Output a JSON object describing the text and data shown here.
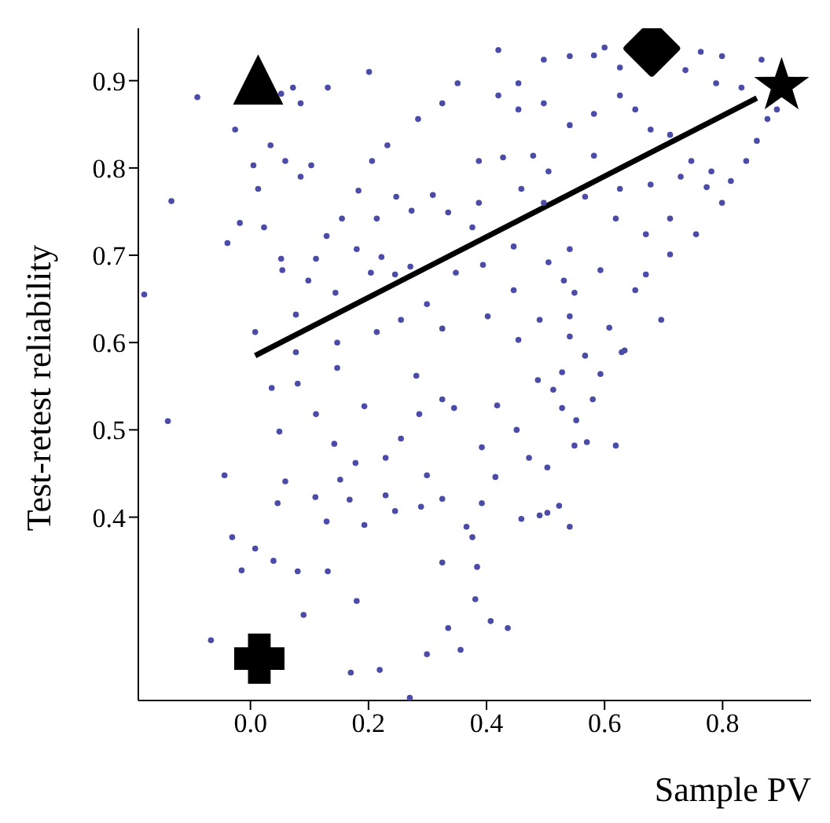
{
  "chart_data": {
    "type": "scatter",
    "xlabel": "Sample PV",
    "ylabel": "Test-retest reliability",
    "xlim": [
      -0.19,
      0.95
    ],
    "ylim": [
      0.19,
      0.96
    ],
    "xticks": [
      {
        "value": 0,
        "label": "0.0"
      },
      0.2,
      0.4,
      0.6,
      0.8
    ],
    "yticks": [
      0.4,
      0.5,
      0.6,
      0.7,
      0.8,
      0.9
    ],
    "grid": false,
    "legend": false,
    "marker": "circle",
    "series": [
      {
        "color": "#4b4ba8",
        "x": [
          -0.067,
          -0.044,
          -0.031,
          -0.015,
          0.008,
          0.046,
          0.039,
          0.059,
          0.08,
          0.09,
          0.11,
          0.131,
          0.129,
          0.18,
          0.17,
          0.219,
          0.27,
          0.299,
          0.335,
          0.356,
          0.325,
          0.325,
          0.289,
          0.245,
          0.229,
          0.193,
          0.168,
          0.178,
          0.152,
          0.142,
          0.229,
          0.255,
          0.299,
          0.286,
          0.193,
          0.111,
          0.049,
          0.036,
          0.08,
          0.147,
          0.281,
          0.325,
          0.345,
          0.366,
          0.384,
          0.381,
          0.407,
          0.436,
          0.376,
          0.392,
          0.392,
          0.415,
          0.418,
          0.451,
          0.472,
          0.459,
          0.49,
          0.503,
          0.523,
          0.541,
          0.503,
          0.487,
          0.513,
          0.528,
          0.528,
          0.552,
          0.549,
          0.57,
          0.58,
          0.567,
          0.593,
          0.619,
          0.629,
          -0.18,
          -0.14,
          -0.134,
          -0.09,
          -0.039,
          -0.018,
          0.023,
          0.005,
          0.013,
          0.052,
          0.072,
          0.085,
          0.052,
          0.054,
          0.098,
          0.077,
          0.111,
          0.155,
          0.129,
          0.131,
          0.201,
          0.103,
          0.183,
          0.206,
          0.214,
          0.18,
          0.222,
          0.204,
          0.144,
          0.245,
          0.271,
          0.247,
          0.273,
          0.309,
          0.335,
          0.348,
          0.299,
          0.325,
          0.214,
          0.255,
          0.147,
          0.077,
          0.008,
          0.232,
          0.284,
          0.325,
          0.351,
          0.085,
          0.059,
          0.034,
          -0.026,
          0.42,
          0.454,
          0.497,
          0.541,
          0.6,
          0.582,
          0.626,
          0.737,
          0.763,
          0.799,
          0.789,
          0.832,
          0.866,
          0.892,
          0.858,
          0.876,
          0.84,
          0.814,
          0.799,
          0.773,
          0.747,
          0.711,
          0.678,
          0.652,
          0.626,
          0.582,
          0.541,
          0.497,
          0.454,
          0.42,
          0.387,
          0.428,
          0.479,
          0.505,
          0.582,
          0.626,
          0.678,
          0.729,
          0.781,
          0.387,
          0.459,
          0.497,
          0.567,
          0.619,
          0.711,
          0.755,
          0.376,
          0.446,
          0.541,
          0.67,
          0.711,
          0.394,
          0.505,
          0.531,
          0.593,
          0.67,
          0.446,
          0.549,
          0.652,
          0.541,
          0.608,
          0.49,
          0.696,
          0.402,
          0.454,
          0.541,
          0.634
        ],
        "values": [
          0.259,
          0.448,
          0.377,
          0.339,
          0.364,
          0.416,
          0.35,
          0.441,
          0.338,
          0.288,
          0.423,
          0.338,
          0.395,
          0.304,
          0.222,
          0.225,
          0.193,
          0.243,
          0.273,
          0.248,
          0.348,
          0.421,
          0.412,
          0.407,
          0.425,
          0.391,
          0.42,
          0.462,
          0.443,
          0.484,
          0.468,
          0.49,
          0.448,
          0.518,
          0.527,
          0.518,
          0.498,
          0.548,
          0.553,
          0.571,
          0.562,
          0.535,
          0.525,
          0.389,
          0.343,
          0.306,
          0.281,
          0.273,
          0.377,
          0.416,
          0.48,
          0.446,
          0.528,
          0.5,
          0.468,
          0.398,
          0.402,
          0.405,
          0.413,
          0.389,
          0.457,
          0.557,
          0.546,
          0.566,
          0.525,
          0.511,
          0.482,
          0.486,
          0.535,
          0.585,
          0.564,
          0.482,
          0.589,
          0.655,
          0.51,
          0.762,
          0.881,
          0.714,
          0.737,
          0.732,
          0.803,
          0.776,
          0.885,
          0.892,
          0.874,
          0.696,
          0.683,
          0.671,
          0.632,
          0.696,
          0.742,
          0.722,
          0.892,
          0.91,
          0.803,
          0.774,
          0.808,
          0.742,
          0.707,
          0.698,
          0.68,
          0.657,
          0.678,
          0.687,
          0.767,
          0.751,
          0.769,
          0.749,
          0.68,
          0.644,
          0.616,
          0.612,
          0.626,
          0.6,
          0.589,
          0.612,
          0.826,
          0.856,
          0.874,
          0.897,
          0.79,
          0.808,
          0.826,
          0.844,
          0.935,
          0.897,
          0.924,
          0.928,
          0.938,
          0.929,
          0.915,
          0.912,
          0.933,
          0.928,
          0.897,
          0.892,
          0.924,
          0.867,
          0.831,
          0.856,
          0.808,
          0.785,
          0.76,
          0.778,
          0.808,
          0.838,
          0.844,
          0.867,
          0.883,
          0.862,
          0.849,
          0.874,
          0.867,
          0.883,
          0.808,
          0.812,
          0.814,
          0.796,
          0.814,
          0.776,
          0.781,
          0.79,
          0.796,
          0.76,
          0.776,
          0.76,
          0.767,
          0.742,
          0.742,
          0.724,
          0.732,
          0.71,
          0.707,
          0.724,
          0.701,
          0.689,
          0.692,
          0.671,
          0.683,
          0.678,
          0.66,
          0.657,
          0.66,
          0.63,
          0.617,
          0.626,
          0.626,
          0.63,
          0.603,
          0.607,
          0.591
        ]
      },
      {
        "type": "line",
        "marker": "none",
        "color": "#000000",
        "x": [
          0.008,
          0.858
        ],
        "values": [
          0.585,
          0.88
        ]
      },
      {
        "color": "#000000",
        "marker": "triangle",
        "x": [
          0.013
        ],
        "values": [
          0.894
        ]
      },
      {
        "color": "#000000",
        "marker": "diamond",
        "x": [
          0.68
        ],
        "values": [
          0.937
        ]
      },
      {
        "color": "#000000",
        "marker": "star",
        "x": [
          0.9
        ],
        "values": [
          0.894
        ]
      },
      {
        "color": "#000000",
        "marker": "cross",
        "x": [
          0.015
        ],
        "values": [
          0.238
        ]
      }
    ]
  }
}
